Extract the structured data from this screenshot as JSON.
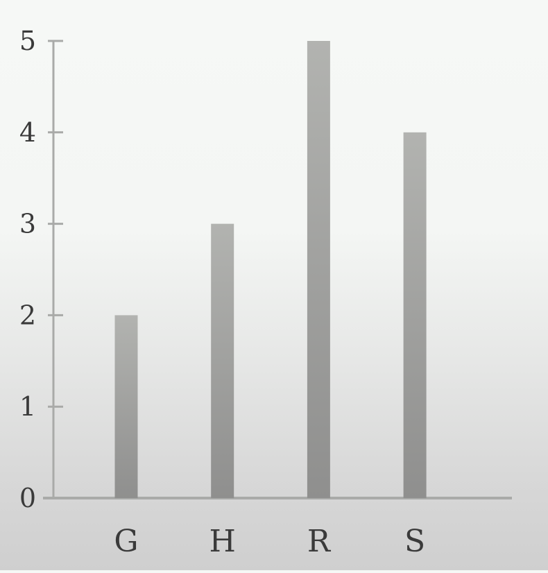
{
  "chart_data": {
    "type": "bar",
    "categories": [
      "G",
      "H",
      "R",
      "S"
    ],
    "values": [
      2,
      3,
      5,
      4
    ],
    "title": "",
    "xlabel": "",
    "ylabel": "",
    "ylim": [
      0,
      5
    ],
    "yticks": [
      "0",
      "1",
      "2",
      "3",
      "4",
      "5"
    ],
    "grid": false,
    "legend": "none",
    "colors": {
      "bar_top": "#b2b3b0",
      "bar_bottom": "#8f8f8e",
      "axis": "#a9aaa8",
      "text": "#3a3a3a"
    }
  }
}
